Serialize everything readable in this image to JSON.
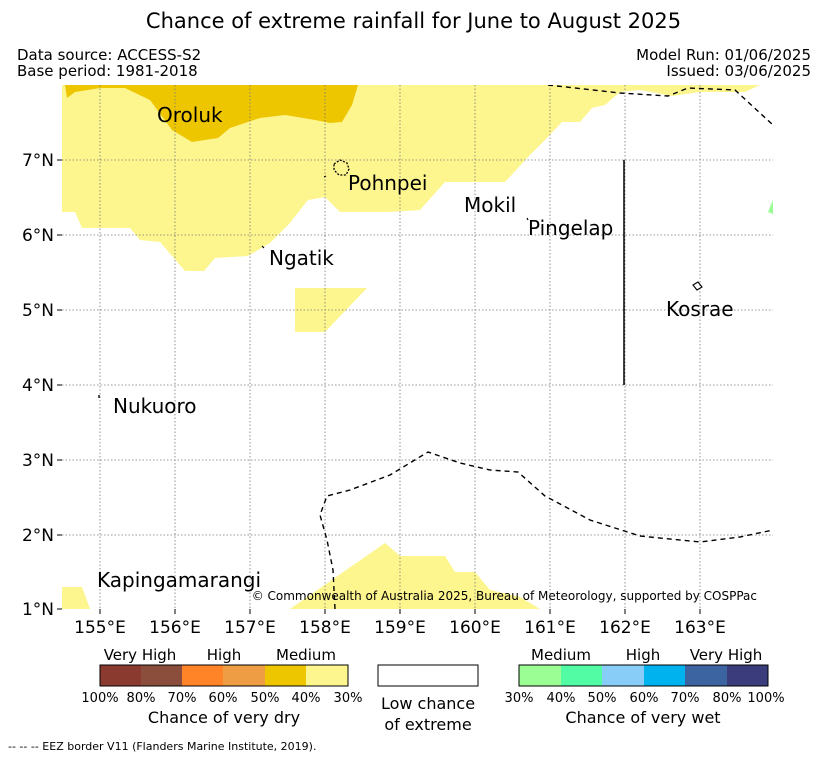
{
  "title": "Chance of extreme rainfall for June to August 2025",
  "header": {
    "data_source": "Data source: ACCESS-S2",
    "base_period": "Base period: 1981-2018",
    "model_run": "Model Run: 01/06/2025",
    "issued": "Issued: 03/06/2025"
  },
  "map": {
    "lon_labels": [
      "155°E",
      "156°E",
      "157°E",
      "158°E",
      "159°E",
      "160°E",
      "161°E",
      "162°E",
      "163°E"
    ],
    "lat_labels": [
      "1°N",
      "2°N",
      "3°N",
      "4°N",
      "5°N",
      "6°N",
      "7°N"
    ],
    "places": {
      "oroluk": "Oroluk",
      "pohnpei": "Pohnpei",
      "mokil": "Mokil",
      "pingelap": "Pingelap",
      "ngatik": "Ngatik",
      "kosrae": "Kosrae",
      "nukuoro": "Nukuoro",
      "kapingamarangi": "Kapingamarangi"
    },
    "copyright": "© Commonwealth of Australia 2025, Bureau of Meteorology, supported by COSPPac"
  },
  "legend": {
    "dry": {
      "categories": [
        "Very High",
        "High",
        "Medium"
      ],
      "percents": [
        "100%",
        "80%",
        "70%",
        "60%",
        "50%",
        "40%",
        "30%"
      ],
      "colors": [
        "#8b3a2f",
        "#8b4e3d",
        "#ff8427",
        "#ee9d45",
        "#eec600",
        "#fdf68f"
      ],
      "title": "Chance of very dry"
    },
    "low": {
      "title_line1": "Low chance",
      "title_line2": "of extreme"
    },
    "wet": {
      "categories": [
        "Medium",
        "High",
        "Very High"
      ],
      "percents": [
        "30%",
        "40%",
        "50%",
        "60%",
        "70%",
        "80%",
        "100%"
      ],
      "colors": [
        "#9bfe95",
        "#52fca5",
        "#87cdf8",
        "#00b2ee",
        "#3b64a0",
        "#3b3c7b"
      ],
      "title": "Chance of very wet"
    }
  },
  "footnote": "-- -- -- EEZ border V11 (Flanders Marine Institute, 2019)."
}
